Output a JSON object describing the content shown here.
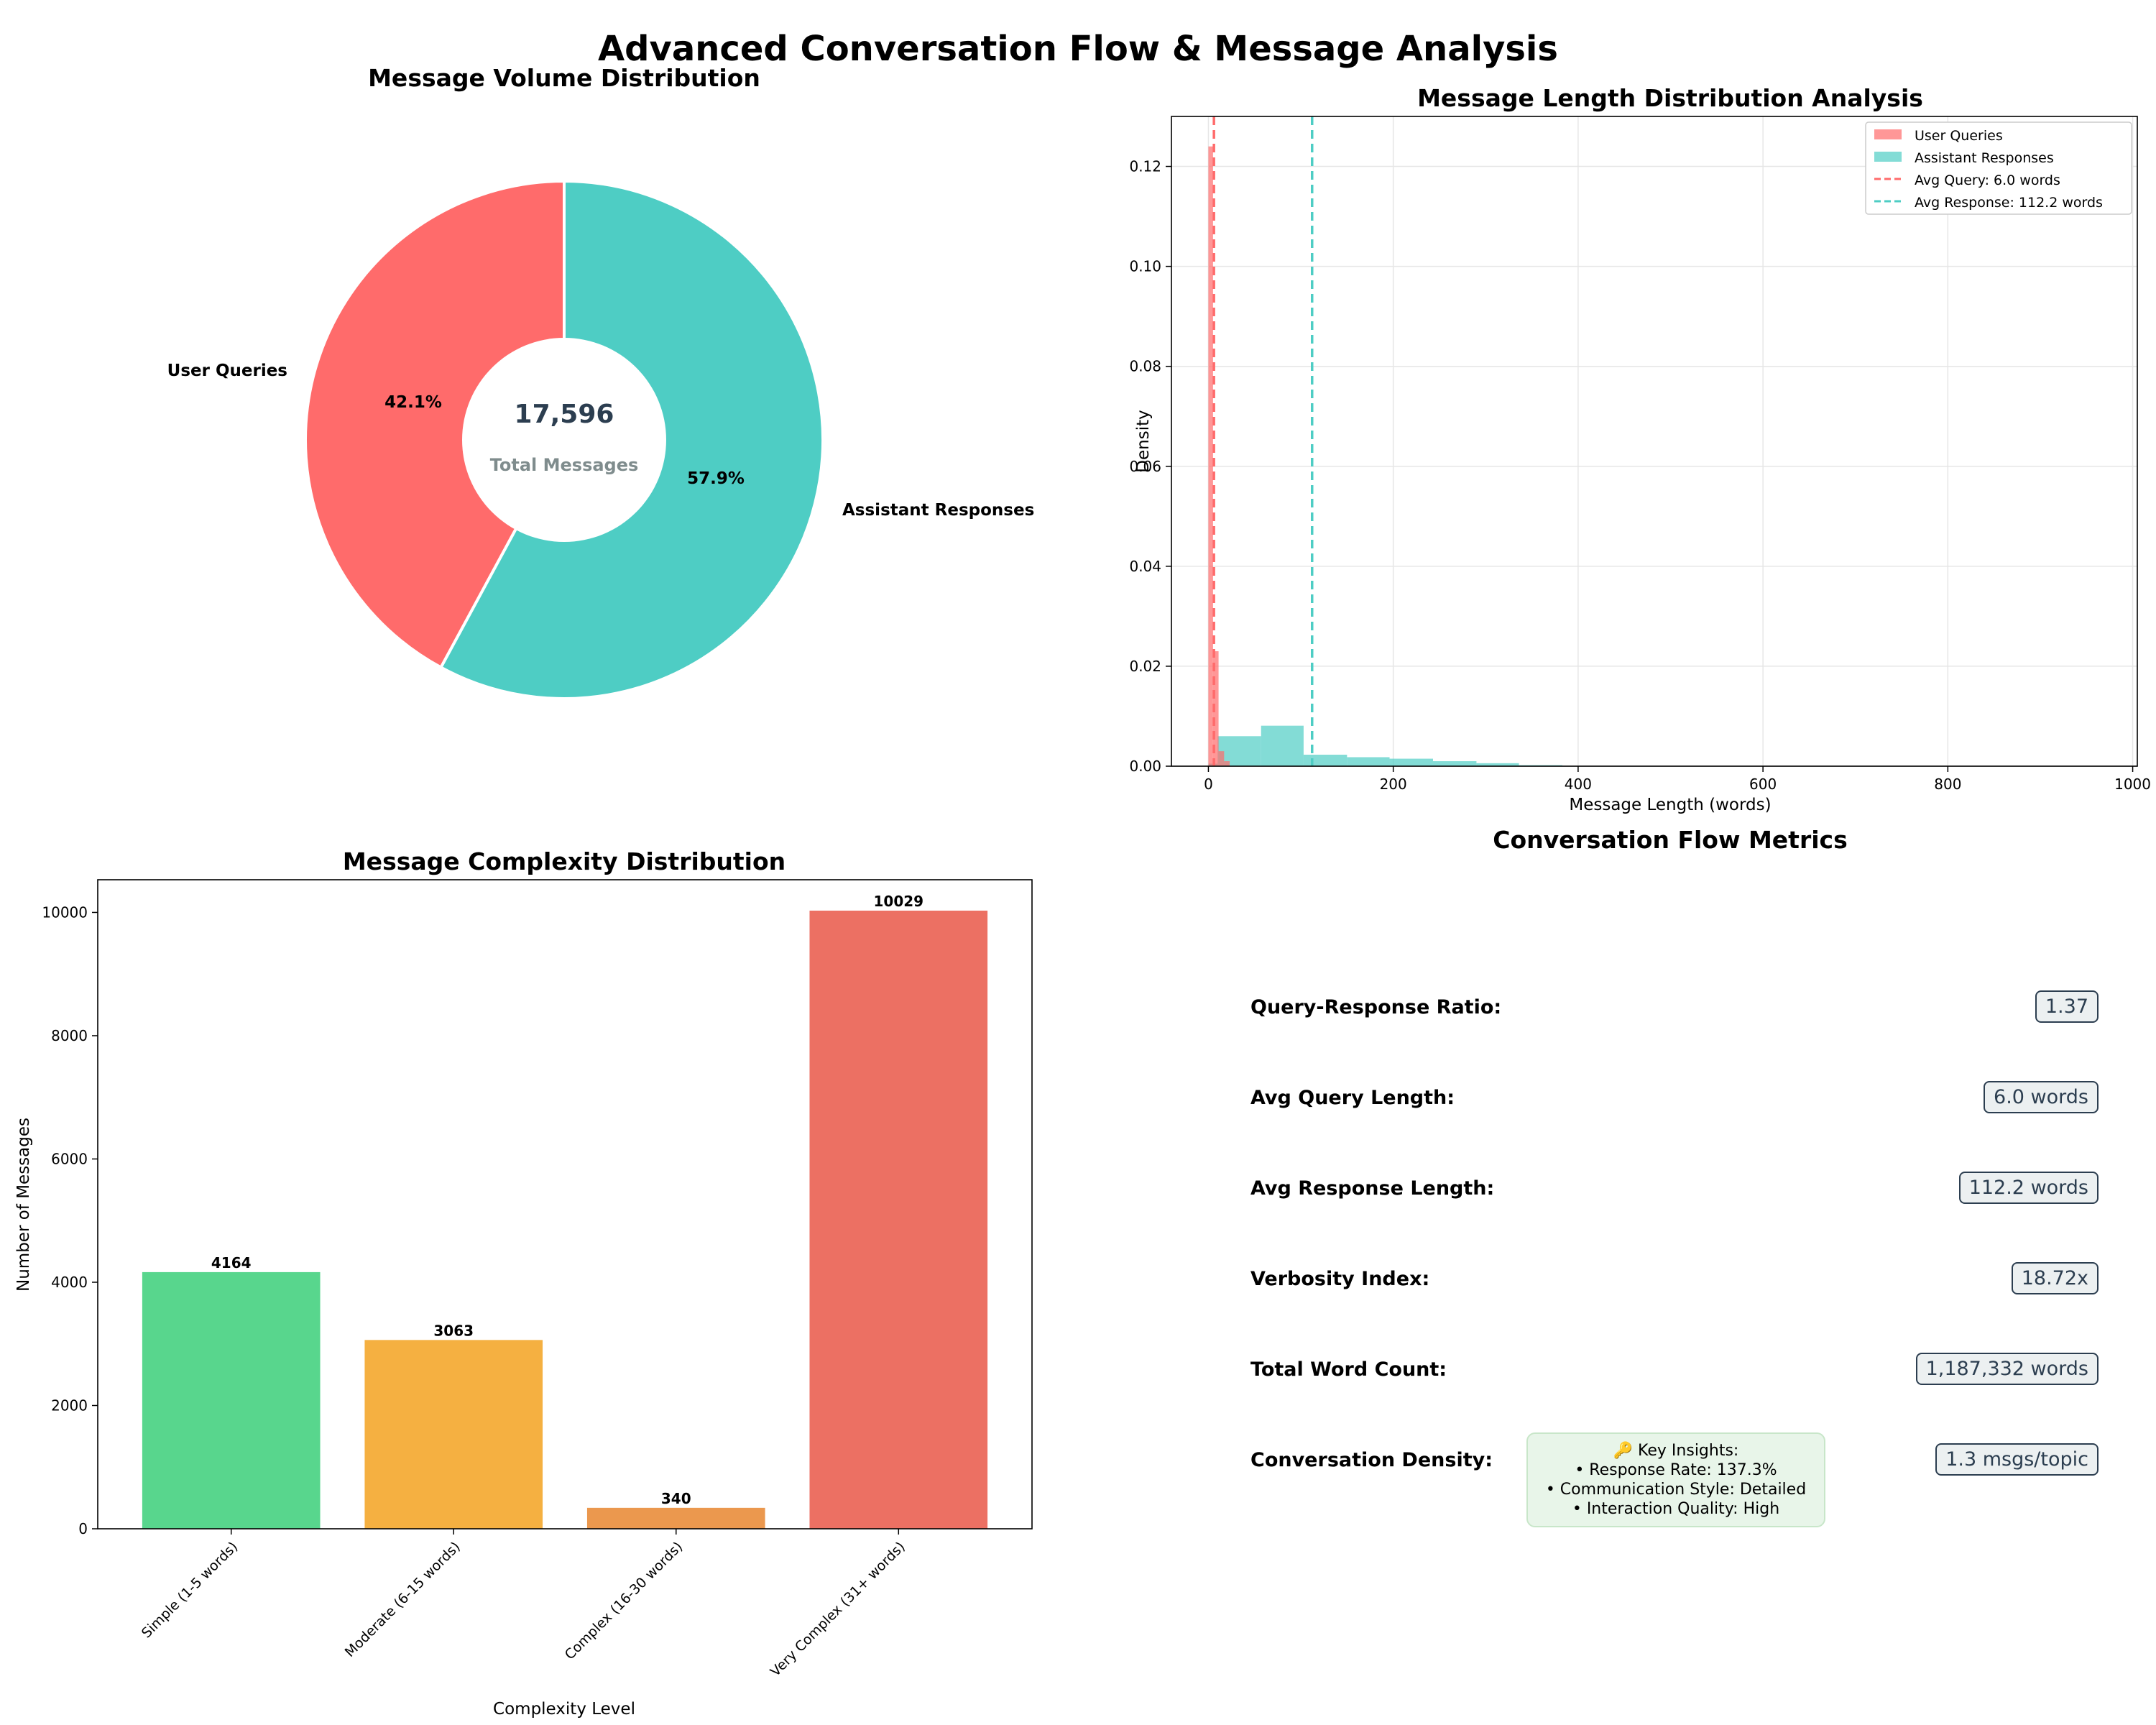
{
  "suptitle": "Advanced Conversation Flow & Message Analysis",
  "colors": {
    "user": "#ff6b6b",
    "assistant": "#4ecdc4",
    "simple": "#58d68d",
    "moderate": "#f5b041",
    "complex": "#eb984e",
    "very_complex": "#ec7063"
  },
  "chart_data": [
    {
      "type": "pie",
      "title": "Message Volume Distribution",
      "labels": [
        "User Queries",
        "Assistant Responses"
      ],
      "values": [
        42.1,
        57.9
      ],
      "value_labels": [
        "42.1%",
        "57.9%"
      ],
      "center_value": "17,596",
      "center_label": "Total Messages"
    },
    {
      "type": "bar",
      "title": "Message Length Distribution Analysis",
      "xlabel": "Message Length (words)",
      "ylabel": "Density",
      "xlim": [
        -40,
        1005
      ],
      "ylim": [
        0,
        0.13
      ],
      "x_ticks": [
        0,
        200,
        400,
        600,
        800,
        1000
      ],
      "y_ticks": [
        0.0,
        0.02,
        0.04,
        0.06,
        0.08,
        0.1,
        0.12
      ],
      "grid": true,
      "legend_position": "top-right",
      "series": [
        {
          "name": "User Queries",
          "bins": [
            [
              0,
              5,
              0.124
            ],
            [
              5,
              11,
              0.023
            ],
            [
              11,
              17,
              0.003
            ],
            [
              17,
              23,
              0.001
            ]
          ]
        },
        {
          "name": "Assistant Responses",
          "bins": [
            [
              0,
              10,
              0.0005
            ],
            [
              10,
              57,
              0.006
            ],
            [
              57,
              103,
              0.0081
            ],
            [
              103,
              150,
              0.0023
            ],
            [
              150,
              196,
              0.0018
            ],
            [
              196,
              243,
              0.0015
            ],
            [
              243,
              290,
              0.001
            ],
            [
              290,
              336,
              0.0006
            ],
            [
              336,
              383,
              0.0002
            ]
          ]
        }
      ],
      "reference_lines": [
        {
          "name": "Avg Query: 6.0 words",
          "x": 6.0
        },
        {
          "name": "Avg Response: 112.2 words",
          "x": 112.2
        }
      ]
    },
    {
      "type": "bar",
      "title": "Message Complexity Distribution",
      "xlabel": "Complexity Level",
      "ylabel": "Number of Messages",
      "ylim": [
        0,
        10530
      ],
      "y_ticks": [
        0,
        2000,
        4000,
        6000,
        8000,
        10000
      ],
      "categories": [
        "Simple (1-5 words)",
        "Moderate (6-15 words)",
        "Complex (16-30 words)",
        "Very Complex (31+ words)"
      ],
      "values": [
        4164,
        3063,
        340,
        10029
      ]
    }
  ],
  "metrics": {
    "title": "Conversation Flow Metrics",
    "rows": [
      {
        "label": "Query-Response Ratio:",
        "value": "1.37"
      },
      {
        "label": "Avg Query Length:",
        "value": "6.0 words"
      },
      {
        "label": "Avg Response Length:",
        "value": "112.2 words"
      },
      {
        "label": "Verbosity Index:",
        "value": "18.72x"
      },
      {
        "label": "Total Word Count:",
        "value": "1,187,332 words"
      },
      {
        "label": "Conversation Density:",
        "value": "1.3 msgs/topic"
      }
    ],
    "insights": [
      "🔑 Key Insights:",
      "• Response Rate: 137.3%",
      "• Communication Style: Detailed",
      "• Interaction Quality: High"
    ]
  }
}
